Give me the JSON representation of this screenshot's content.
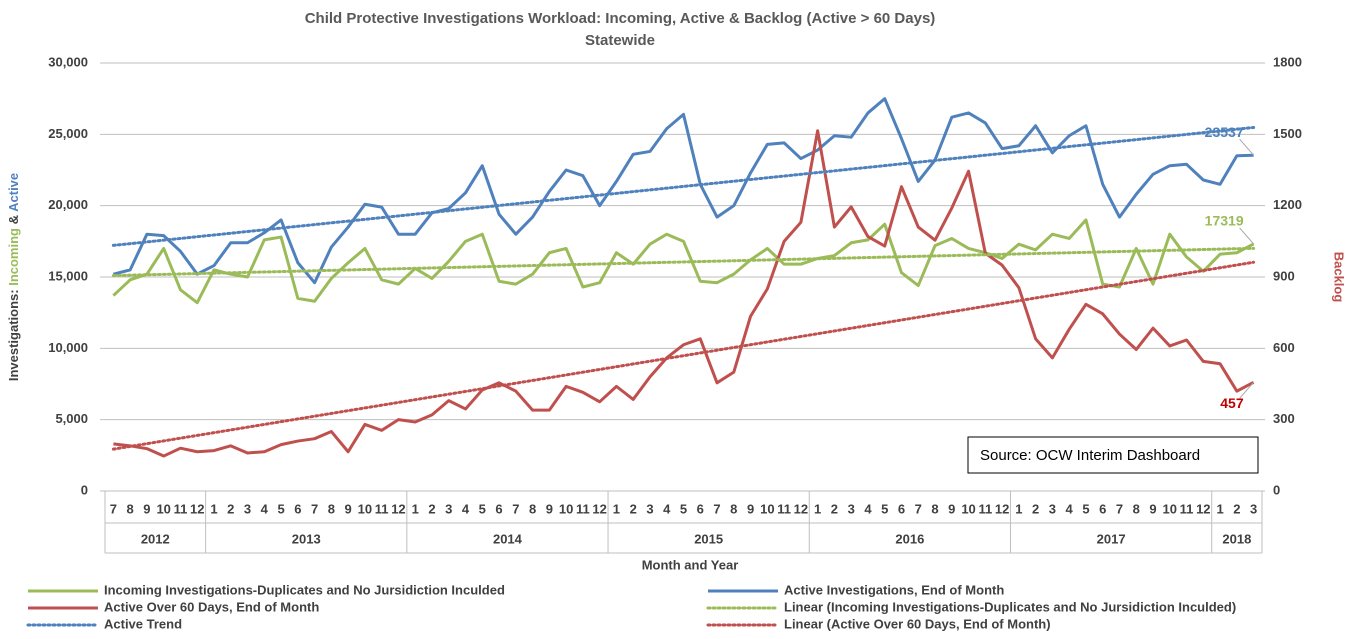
{
  "chart_data": {
    "type": "line",
    "title": "Child Protective Investigations Workload: Incoming, Active & Backlog (Active > 60 Days)",
    "subtitle": "Statewide",
    "ylabel_parts": [
      {
        "text": "Investigations: ",
        "color": "#404040"
      },
      {
        "text": "Incoming",
        "color": "#9bbb59"
      },
      {
        "text": " & ",
        "color": "#404040"
      },
      {
        "text": "Active",
        "color": "#4f81bd"
      }
    ],
    "y2label": "Backlog",
    "y2label_color": "#c0504d",
    "xlabel": "Month and Year",
    "annotation": "Source:  OCW Interim  Dashboard",
    "categories": [
      "7",
      "8",
      "9",
      "10",
      "11",
      "12",
      "1",
      "2",
      "3",
      "4",
      "5",
      "6",
      "7",
      "8",
      "9",
      "10",
      "11",
      "12",
      "1",
      "2",
      "3",
      "4",
      "5",
      "6",
      "7",
      "8",
      "9",
      "10",
      "11",
      "12",
      "1",
      "2",
      "3",
      "4",
      "5",
      "6",
      "7",
      "8",
      "9",
      "10",
      "11",
      "12",
      "1",
      "2",
      "3",
      "4",
      "5",
      "6",
      "7",
      "8",
      "9",
      "10",
      "11",
      "12",
      "1",
      "2",
      "3",
      "4",
      "5",
      "6",
      "7",
      "8",
      "9",
      "10",
      "11",
      "12",
      "1",
      "2",
      "3"
    ],
    "category_groups": [
      "2012",
      "2013",
      "2014",
      "2015",
      "2016",
      "2017",
      "2018"
    ],
    "series": [
      {
        "name": "Incoming Investigations-Duplicates and No Jursidiction Inculded",
        "color": "#9bbb59",
        "data_label": "last",
        "values": [
          13700,
          14800,
          15200,
          17000,
          14100,
          13200,
          15500,
          15200,
          15000,
          17600,
          17800,
          13500,
          13300,
          14900,
          16000,
          17000,
          14800,
          14500,
          15600,
          14900,
          16100,
          17500,
          18000,
          14700,
          14500,
          15200,
          16700,
          17000,
          14300,
          14600,
          16700,
          15900,
          17300,
          18000,
          17500,
          14700,
          14600,
          15200,
          16200,
          17000,
          15900,
          15900,
          16300,
          16500,
          17400,
          17600,
          18700,
          15300,
          14400,
          17200,
          17700,
          17000,
          16700,
          16300,
          17300,
          16900,
          18000,
          17700,
          19000,
          14500,
          14300,
          17000,
          14500,
          18000,
          16400,
          15400,
          16600,
          16700,
          17319
        ]
      },
      {
        "name": "Active Investigations, End of Month",
        "color": "#4f81bd",
        "data_label": "last",
        "values": [
          15200,
          15500,
          18000,
          17900,
          16800,
          15200,
          15800,
          17400,
          17400,
          18100,
          19000,
          16000,
          14600,
          17100,
          18500,
          20100,
          19900,
          18000,
          18000,
          19500,
          19800,
          20900,
          22800,
          19400,
          18000,
          19200,
          21000,
          22500,
          22100,
          20000,
          21700,
          23600,
          23800,
          25400,
          26400,
          21500,
          19200,
          20000,
          22300,
          24300,
          24400,
          23300,
          23900,
          24900,
          24800,
          26500,
          27500,
          24700,
          21700,
          23200,
          26200,
          26500,
          25800,
          24000,
          24200,
          25600,
          23700,
          24900,
          25600,
          21500,
          19200,
          20800,
          22200,
          22800,
          22900,
          21800,
          21500,
          23500,
          23537
        ]
      },
      {
        "name": "Active Over 60 Days, End of Month",
        "color": "#c0504d",
        "axis": "y2",
        "data_label": "last",
        "data_label_color": "#c00000",
        "values": [
          198,
          190,
          178,
          147,
          180,
          165,
          170,
          190,
          160,
          165,
          195,
          210,
          220,
          250,
          165,
          280,
          255,
          300,
          290,
          320,
          380,
          345,
          425,
          455,
          420,
          340,
          340,
          440,
          415,
          375,
          440,
          385,
          480,
          560,
          615,
          640,
          455,
          500,
          735,
          850,
          1050,
          1130,
          1515,
          1110,
          1195,
          1070,
          1030,
          1280,
          1110,
          1055,
          1190,
          1345,
          1000,
          950,
          855,
          640,
          560,
          680,
          785,
          745,
          660,
          595,
          685,
          610,
          635,
          545,
          535,
          420,
          457
        ]
      },
      {
        "name": "Linear (Incoming Investigations-Duplicates and No Jursidiction Inculded)",
        "color": "#9bbb59",
        "trend_of": 0
      },
      {
        "name": "Active Trend",
        "color": "#4f81bd",
        "trend_of": 1
      },
      {
        "name": "Linear (Active Over 60 Days, End of Month)",
        "color": "#c0504d",
        "trend_of": 2
      }
    ],
    "ylim": [
      0,
      30000
    ],
    "yticks": [
      0,
      {
        "value": 5000,
        "label": "5,000"
      },
      {
        "value": 10000,
        "label": "10,000"
      },
      {
        "value": 15000,
        "label": "15,000"
      },
      {
        "value": 20000,
        "label": "20,000"
      },
      {
        "value": 25000,
        "label": "25,000"
      },
      {
        "value": 30000,
        "label": "30,000"
      }
    ],
    "y2lim": [
      0,
      1800
    ],
    "y2ticks": [
      0,
      300,
      600,
      900,
      1200,
      1500,
      1800
    ],
    "grid": true
  }
}
